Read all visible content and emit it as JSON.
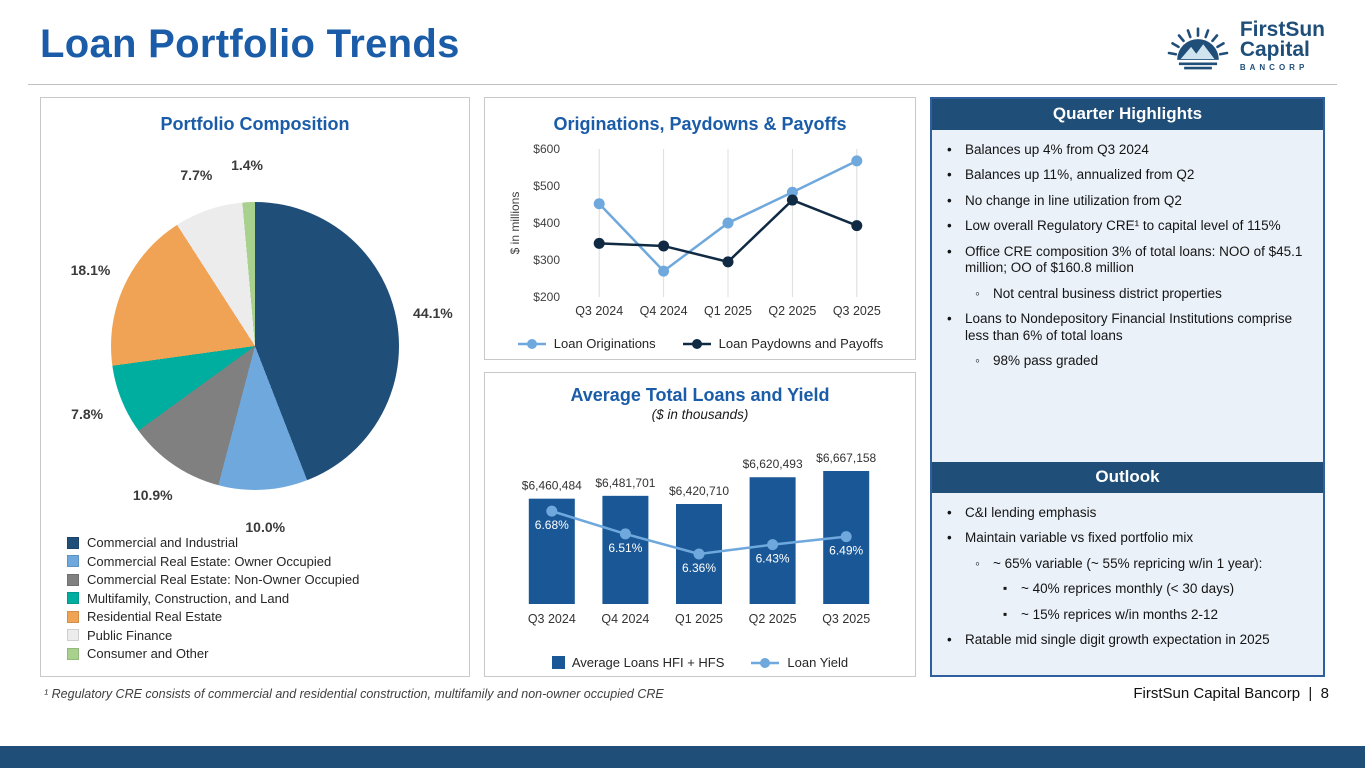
{
  "page": {
    "title": "Loan Portfolio Trends",
    "footnote": "¹ Regulatory CRE consists of commercial and residential construction, multifamily and non-owner occupied CRE",
    "footer": "FirstSun Capital Bancorp  |  8",
    "brand": {
      "name1": "FirstSun",
      "name2": "Capital",
      "name3": "BANCORP"
    }
  },
  "colors": {
    "accent_blue": "#1A5CA8",
    "navy": "#1F4E79",
    "light_blue": "#6FA8DC",
    "panel_bg": "#EAF1F9",
    "panel_border": "#2F5F9F"
  },
  "chart_data": [
    {
      "type": "pie",
      "title": "Portfolio Composition",
      "labels": [
        "Commercial and Industrial",
        "Commercial Real Estate: Owner Occupied",
        "Commercial Real Estate: Non-Owner Occupied",
        "Multifamily, Construction, and Land",
        "Residential Real Estate",
        "Public Finance",
        "Consumer and Other"
      ],
      "values": [
        44.1,
        10.0,
        10.9,
        7.8,
        18.1,
        7.7,
        1.4
      ],
      "colors": [
        "#1F4E79",
        "#6FA8DC",
        "#808080",
        "#00AEA0",
        "#F0A355",
        "#ECECEC",
        "#A9D18E"
      ],
      "value_suffix": "%",
      "legend_position": "bottom"
    },
    {
      "type": "line",
      "title": "Originations, Paydowns & Payoffs",
      "ylabel": "$ in millions",
      "categories": [
        "Q3 2024",
        "Q4 2024",
        "Q1 2025",
        "Q2 2025",
        "Q3 2025"
      ],
      "series": [
        {
          "name": "Loan Originations",
          "color": "#6FA8DC",
          "values": [
            452,
            270,
            400,
            483,
            568
          ]
        },
        {
          "name": "Loan Paydowns and Payoffs",
          "color": "#102A43",
          "values": [
            345,
            338,
            295,
            462,
            393
          ]
        }
      ],
      "ylim": [
        200,
        600
      ],
      "ytick_step": 100,
      "tick_prefix": "$",
      "grid": "vertical",
      "legend_position": "bottom"
    },
    {
      "type": "bar",
      "title": "Average Total Loans and Yield",
      "subtitle": "($ in thousands)",
      "categories": [
        "Q3 2024",
        "Q4 2024",
        "Q1 2025",
        "Q2 2025",
        "Q3 2025"
      ],
      "series": [
        {
          "name": "Average Loans HFI + HFS",
          "type": "bar",
          "color": "#1A5796",
          "values": [
            6460484,
            6481701,
            6420710,
            6620493,
            6667158
          ],
          "labels": [
            "$6,460,484",
            "$6,481,701",
            "$6,420,710",
            "$6,620,493",
            "$6,667,158"
          ]
        },
        {
          "name": "Loan Yield",
          "type": "line",
          "color": "#6FA8DC",
          "values": [
            6.68,
            6.51,
            6.36,
            6.43,
            6.49
          ],
          "labels": [
            "6.68%",
            "6.51%",
            "6.36%",
            "6.43%",
            "6.49%"
          ]
        }
      ],
      "legend_position": "bottom"
    }
  ],
  "highlights": {
    "title": "Quarter Highlights",
    "items": [
      {
        "level": 1,
        "text": "Balances up 4% from Q3 2024"
      },
      {
        "level": 1,
        "text": "Balances up 11%, annualized from Q2"
      },
      {
        "level": 1,
        "text": "No change in line utilization from Q2"
      },
      {
        "level": 1,
        "text": "Low overall Regulatory CRE¹ to capital level of 115%"
      },
      {
        "level": 1,
        "text": "Office CRE composition 3% of total loans: NOO of $45.1 million; OO of $160.8 million"
      },
      {
        "level": 2,
        "text": "Not central business district properties"
      },
      {
        "level": 1,
        "text": "Loans to Nondepository Financial Institutions comprise less than 6% of total loans"
      },
      {
        "level": 2,
        "text": "98% pass graded"
      }
    ]
  },
  "outlook": {
    "title": "Outlook",
    "items": [
      {
        "level": 1,
        "text": "C&I lending emphasis"
      },
      {
        "level": 1,
        "text": "Maintain variable vs fixed portfolio mix"
      },
      {
        "level": 2,
        "text": "~ 65% variable (~ 55% repricing w/in 1 year):"
      },
      {
        "level": 3,
        "text": "~ 40% reprices monthly (< 30 days)"
      },
      {
        "level": 3,
        "text": "~ 15% reprices w/in months 2-12"
      },
      {
        "level": 1,
        "text": "Ratable mid single digit growth expectation in 2025"
      }
    ]
  }
}
